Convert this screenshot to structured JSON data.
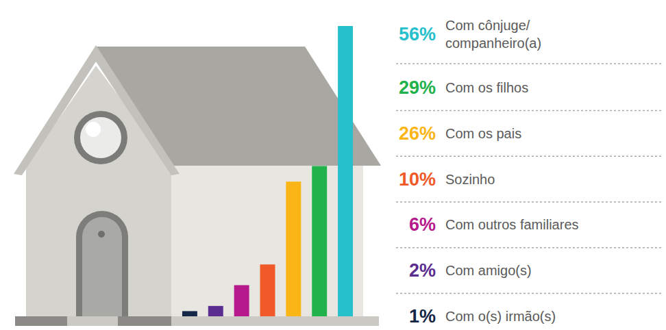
{
  "chart_data": {
    "type": "bar",
    "categories": [
      "Com cônjuge/companheiro(a)",
      "Com os filhos",
      "Com os pais",
      "Sozinho",
      "Com outros familiares",
      "Com amigo(s)",
      "Com o(s) irmão(s)"
    ],
    "values": [
      56,
      29,
      26,
      10,
      6,
      2,
      1
    ],
    "value_labels": [
      "56%",
      "29%",
      "26%",
      "10%",
      "6%",
      "2%",
      "1%"
    ],
    "colors": [
      "#26bfcc",
      "#21b24b",
      "#fbb516",
      "#f05a28",
      "#b5198c",
      "#5b2d90",
      "#152746"
    ],
    "ylim": [
      0,
      56
    ],
    "tick_labels": false,
    "data_labels": true
  }
}
